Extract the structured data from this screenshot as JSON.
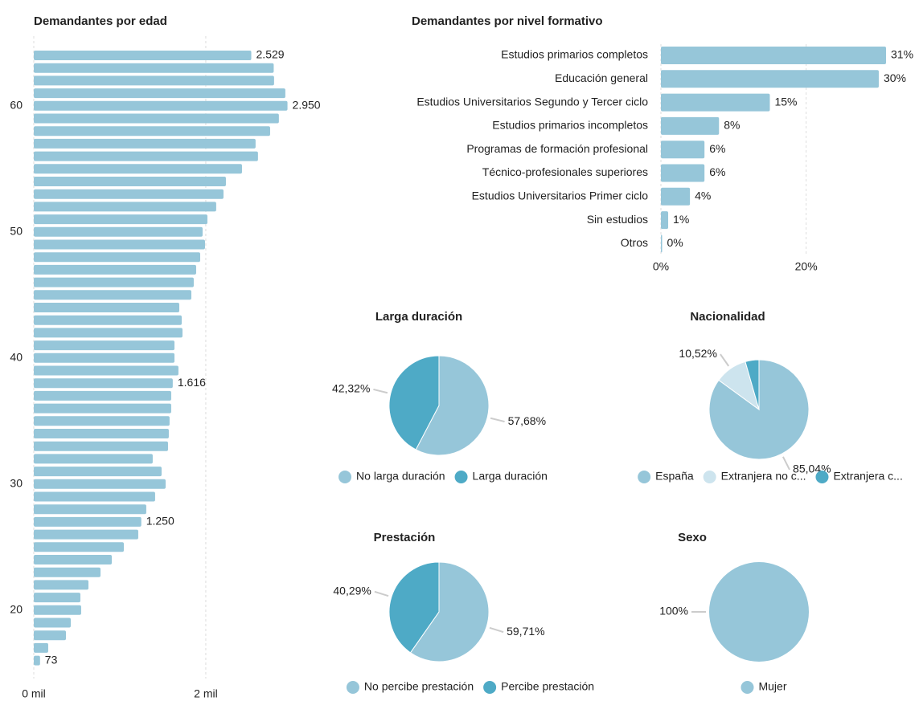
{
  "chart_data": [
    {
      "type": "bar",
      "orientation": "horizontal",
      "title": "Demandantes por edad",
      "categories": [
        null,
        null,
        null,
        null,
        "60",
        null,
        null,
        null,
        null,
        null,
        null,
        null,
        null,
        null,
        "50",
        null,
        null,
        null,
        null,
        null,
        null,
        null,
        null,
        null,
        "40",
        null,
        null,
        null,
        null,
        null,
        null,
        null,
        null,
        null,
        "30",
        null,
        null,
        null,
        null,
        null,
        null,
        null,
        null,
        null,
        "20",
        null,
        null,
        null,
        null
      ],
      "values": [
        2529,
        2790,
        2794,
        2925,
        2950,
        2850,
        2748,
        2579,
        2607,
        2421,
        2234,
        2206,
        2121,
        2019,
        1963,
        1991,
        1935,
        1888,
        1860,
        1832,
        1692,
        1720,
        1729,
        1636,
        1636,
        1682,
        1616,
        1598,
        1598,
        1579,
        1570,
        1561,
        1383,
        1486,
        1533,
        1411,
        1308,
        1250,
        1215,
        1047,
        907,
        776,
        636,
        542,
        551,
        430,
        374,
        168,
        73
      ],
      "value_labels": [
        "2.529",
        null,
        null,
        null,
        "2.950",
        null,
        null,
        null,
        null,
        null,
        null,
        null,
        null,
        null,
        null,
        null,
        null,
        null,
        null,
        null,
        null,
        null,
        null,
        null,
        null,
        null,
        "1.616",
        null,
        null,
        null,
        null,
        null,
        null,
        null,
        null,
        null,
        null,
        "1.250",
        null,
        null,
        null,
        null,
        null,
        null,
        null,
        null,
        null,
        null,
        "73"
      ],
      "color": "#96c6d9",
      "xlim": [
        0,
        3300
      ],
      "xticks": [
        {
          "value": 0,
          "label": "0 mil"
        },
        {
          "value": 2000,
          "label": "2 mil"
        }
      ],
      "grid": true
    },
    {
      "type": "bar",
      "orientation": "horizontal",
      "title": "Demandantes por nivel formativo",
      "categories": [
        "Estudios primarios completos",
        "Educación general",
        "Estudios Universitarios Segundo y Tercer ciclo",
        "Estudios primarios incompletos",
        "Programas de formación profesional",
        "Técnico-profesionales superiores",
        "Estudios Universitarios Primer ciclo",
        "Sin estudios",
        "Otros"
      ],
      "values": [
        31,
        30,
        15,
        8,
        6,
        6,
        4,
        1,
        0
      ],
      "value_labels": [
        "31%",
        "30%",
        "15%",
        "8%",
        "6%",
        "6%",
        "4%",
        "1%",
        "0%"
      ],
      "color": "#96c6d9",
      "xlim": [
        0,
        31
      ],
      "xticks": [
        {
          "value": 0,
          "label": "0%"
        },
        {
          "value": 20,
          "label": "20%"
        }
      ],
      "grid": true
    },
    {
      "type": "pie",
      "title": "Larga duración",
      "categories": [
        "No larga duración",
        "Larga duración"
      ],
      "values": [
        57.68,
        42.32
      ],
      "value_labels": [
        "57,68%",
        "42,32%"
      ],
      "colors": [
        "#96c6d9",
        "#4eaac6"
      ]
    },
    {
      "type": "pie",
      "title": "Nacionalidad",
      "categories": [
        "España",
        "Extranjera no c...",
        "Extranjera c..."
      ],
      "values": [
        85.04,
        10.52,
        4.44
      ],
      "value_labels": [
        "85,04%",
        "10,52%",
        null
      ],
      "colors": [
        "#96c6d9",
        "#cde4ee",
        "#4eaac6"
      ]
    },
    {
      "type": "pie",
      "title": "Prestación",
      "categories": [
        "No percibe prestación",
        "Percibe prestación"
      ],
      "values": [
        59.71,
        40.29
      ],
      "value_labels": [
        "59,71%",
        "40,29%"
      ],
      "colors": [
        "#96c6d9",
        "#4eaac6"
      ]
    },
    {
      "type": "pie",
      "title": "Sexo",
      "categories": [
        "Mujer"
      ],
      "values": [
        100
      ],
      "value_labels": [
        "100%"
      ],
      "colors": [
        "#96c6d9"
      ]
    }
  ]
}
